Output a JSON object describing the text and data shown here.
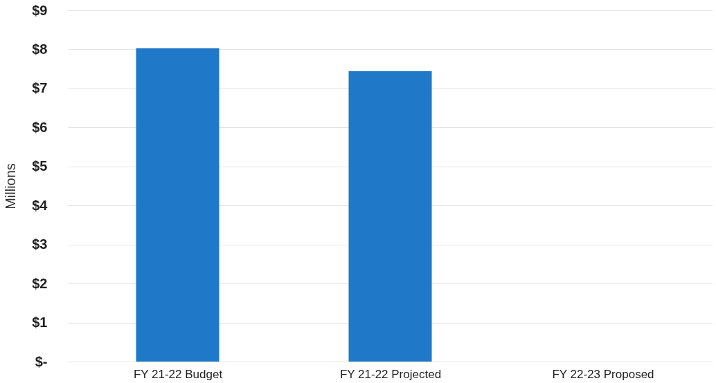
{
  "chart_data": {
    "type": "bar",
    "ylabel": "Millions",
    "categories": [
      "FY 21-22 Budget",
      "FY 21-22 Projected",
      "FY 22-23 Proposed"
    ],
    "values": [
      8.03,
      7.44,
      null
    ],
    "color": "#1f78c8",
    "ylim": [
      0,
      9
    ],
    "yticks": [
      {
        "value": 0,
        "label": "$-"
      },
      {
        "value": 1,
        "label": "$1"
      },
      {
        "value": 2,
        "label": "$2"
      },
      {
        "value": 3,
        "label": "$3"
      },
      {
        "value": 4,
        "label": "$4"
      },
      {
        "value": 5,
        "label": "$5"
      },
      {
        "value": 6,
        "label": "$6"
      },
      {
        "value": 7,
        "label": "$7"
      },
      {
        "value": 8,
        "label": "$8"
      },
      {
        "value": 9,
        "label": "$9"
      }
    ],
    "grid": "y"
  }
}
